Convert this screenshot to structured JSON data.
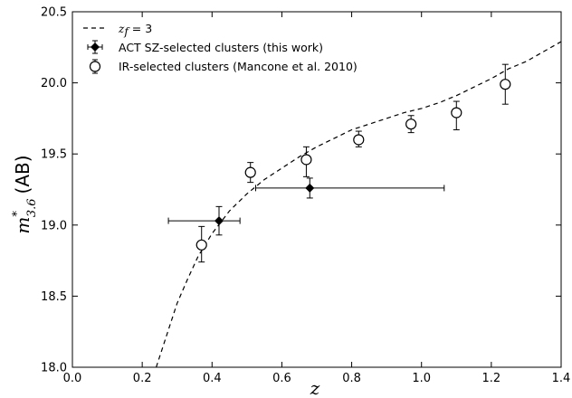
{
  "chart_data": {
    "type": "scatter",
    "xlabel": "z",
    "ylabel": {
      "symbol": "m",
      "superscript": "*",
      "subscript": "3.6",
      "unit": "(AB)"
    },
    "xlim": [
      0.0,
      1.4
    ],
    "ylim": [
      18.0,
      20.5
    ],
    "x_ticks": [
      "0.0",
      "0.2",
      "0.4",
      "0.6",
      "0.8",
      "1.0",
      "1.2",
      "1.4"
    ],
    "y_ticks": [
      "18.0",
      "18.5",
      "19.0",
      "19.5",
      "20.0",
      "20.5"
    ],
    "grid": false,
    "legend_position": "top-left",
    "series": [
      {
        "name": "z_f = 3",
        "legend_label": {
          "symbol": "z",
          "subscript": "f",
          "rest": " = 3"
        },
        "style": "dashed-line",
        "x": [
          0.24,
          0.26,
          0.28,
          0.3,
          0.33,
          0.36,
          0.4,
          0.45,
          0.5,
          0.55,
          0.6,
          0.65,
          0.7,
          0.75,
          0.8,
          0.85,
          0.9,
          0.95,
          1.0,
          1.05,
          1.1,
          1.15,
          1.2,
          1.25,
          1.3,
          1.35,
          1.4
        ],
        "y": [
          18.0,
          18.15,
          18.3,
          18.45,
          18.62,
          18.78,
          18.94,
          19.1,
          19.22,
          19.32,
          19.4,
          19.48,
          19.55,
          19.61,
          19.67,
          19.71,
          19.75,
          19.79,
          19.82,
          19.86,
          19.91,
          19.97,
          20.03,
          20.1,
          20.15,
          20.22,
          20.29
        ]
      },
      {
        "name": "ACT SZ-selected clusters (this work)",
        "marker": "filled-diamond",
        "points": [
          {
            "x": 0.42,
            "y": 19.03,
            "xerr": [
              0.275,
              0.48
            ],
            "yerr": [
              18.93,
              19.13
            ]
          },
          {
            "x": 0.68,
            "y": 19.26,
            "xerr": [
              0.525,
              1.065
            ],
            "yerr": [
              19.19,
              19.33
            ]
          }
        ]
      },
      {
        "name": "IR-selected clusters (Mancone et al. 2010)",
        "marker": "open-circle",
        "points": [
          {
            "x": 0.37,
            "y": 18.86,
            "yerr": [
              18.74,
              18.99
            ]
          },
          {
            "x": 0.51,
            "y": 19.37,
            "yerr": [
              19.3,
              19.44
            ]
          },
          {
            "x": 0.67,
            "y": 19.46,
            "yerr": [
              19.34,
              19.55
            ]
          },
          {
            "x": 0.82,
            "y": 19.6,
            "yerr": [
              19.55,
              19.66
            ]
          },
          {
            "x": 0.97,
            "y": 19.71,
            "yerr": [
              19.65,
              19.77
            ]
          },
          {
            "x": 1.1,
            "y": 19.79,
            "yerr": [
              19.67,
              19.87
            ]
          },
          {
            "x": 1.24,
            "y": 19.99,
            "yerr": [
              19.85,
              20.13
            ]
          }
        ]
      }
    ]
  }
}
